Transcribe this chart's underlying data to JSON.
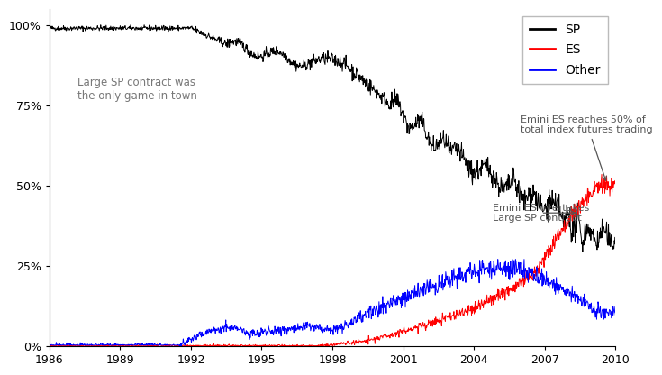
{
  "xlim": [
    1986,
    2010
  ],
  "ylim": [
    0,
    1.05
  ],
  "yticks": [
    0,
    0.25,
    0.5,
    0.75,
    1.0
  ],
  "ytick_labels": [
    "0%",
    "25%",
    "50%",
    "75%",
    "100%"
  ],
  "xticks": [
    1986,
    1989,
    1992,
    1995,
    1998,
    2001,
    2004,
    2007,
    2010
  ],
  "sp_color": "#000000",
  "es_color": "#ff0000",
  "other_color": "#0000ff",
  "legend_labels": [
    "SP",
    "ES",
    "Other"
  ],
  "annotation1_text": "Large SP contract was\nthe only game in town",
  "annotation2_text": "Emini ES reaches 50% of\ntotal index futures trading",
  "annotation3_text": "Emini ES overtakes\nLarge SP contract",
  "seed": 42
}
